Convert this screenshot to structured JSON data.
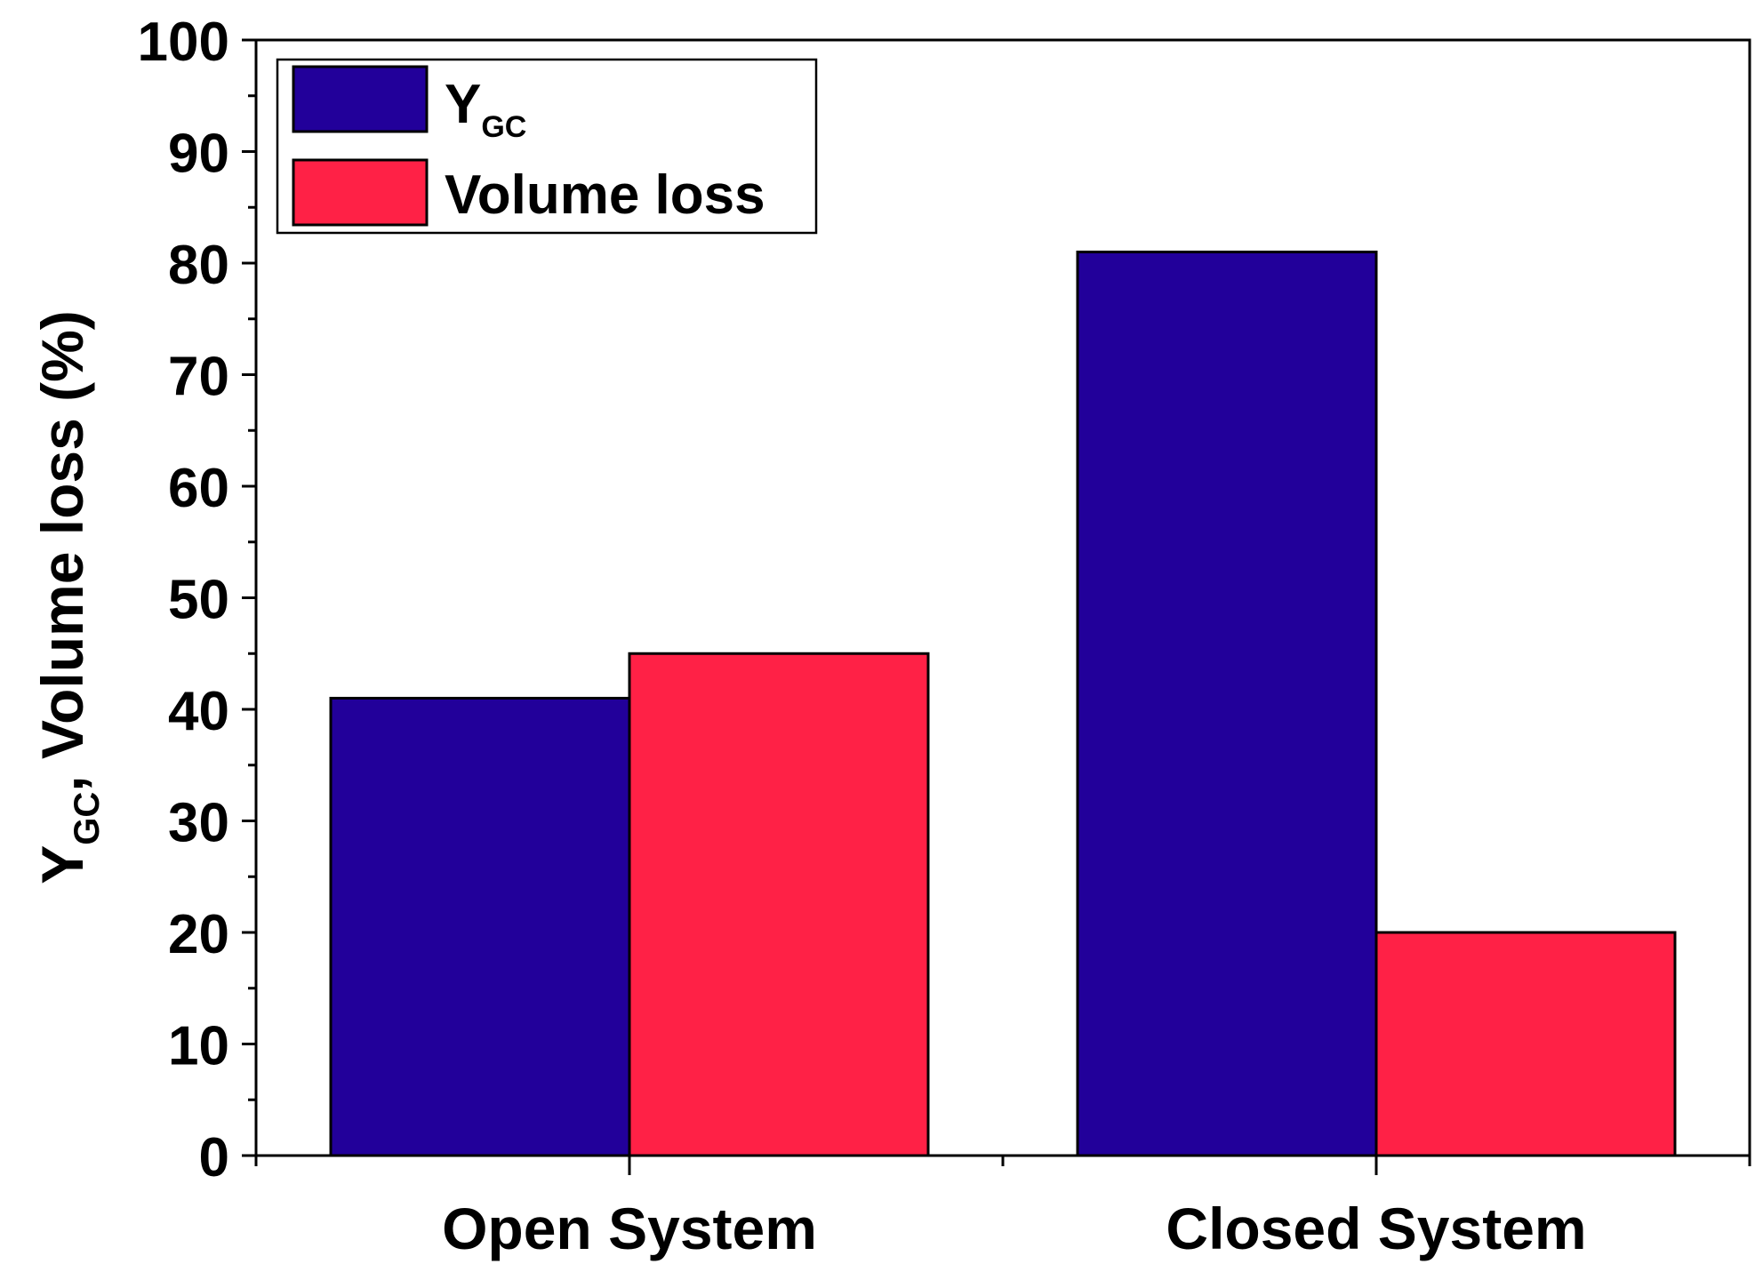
{
  "chart_data": {
    "type": "bar",
    "categories": [
      "Open System",
      "Closed System"
    ],
    "series": [
      {
        "name": "Y",
        "name_sub": "GC",
        "color": "#22009a",
        "values": [
          41,
          81
        ]
      },
      {
        "name": "Volume loss",
        "color": "#ff2146",
        "values": [
          45,
          20
        ]
      }
    ],
    "ylabel": {
      "main": "Y",
      "sub": "GC",
      "rest": ", Volume loss (%)"
    },
    "xlabel": "",
    "ylim": [
      0,
      100
    ],
    "yticks": [
      "0",
      "10",
      "20",
      "30",
      "40",
      "50",
      "60",
      "70",
      "80",
      "90",
      "100"
    ],
    "grid": false,
    "legend_position": "top-left"
  }
}
